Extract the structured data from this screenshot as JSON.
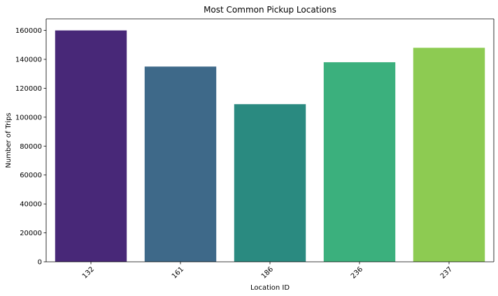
{
  "chart_data": {
    "type": "bar",
    "title": "Most Common Pickup Locations",
    "xlabel": "Location ID",
    "ylabel": "Number of Trips",
    "categories": [
      "132",
      "161",
      "186",
      "236",
      "237"
    ],
    "values": [
      160000,
      135000,
      109000,
      138000,
      148000
    ],
    "colors": [
      "#482878",
      "#3e6989",
      "#2a8a80",
      "#3bb07d",
      "#8dcb52"
    ],
    "ylim": [
      0,
      168000
    ],
    "yticks": [
      0,
      20000,
      40000,
      60000,
      80000,
      100000,
      120000,
      140000,
      160000
    ],
    "grid": false,
    "legend": "none",
    "xtick_rotation": -45
  }
}
